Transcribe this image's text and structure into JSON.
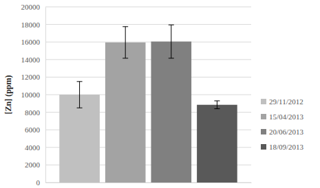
{
  "chart_data": {
    "type": "bar",
    "y_label": "[Zn] (ppm)",
    "categories": [
      null
    ],
    "series": [
      {
        "name": "29/11/2012",
        "color": "#c0c0c0",
        "values": [
          10000
        ],
        "error": [
          1500
        ]
      },
      {
        "name": "15/04/2013",
        "color": "#a3a3a3",
        "values": [
          15950
        ],
        "error": [
          1800
        ]
      },
      {
        "name": "20/06/2013",
        "color": "#808080",
        "values": [
          16050
        ],
        "error": [
          1900
        ]
      },
      {
        "name": "18/09/2013",
        "color": "#595959",
        "values": [
          8850
        ],
        "error": [
          450
        ]
      }
    ],
    "ylim": [
      0,
      20000
    ],
    "yticks": [
      0,
      2000,
      4000,
      6000,
      8000,
      10000,
      12000,
      14000,
      16000,
      18000,
      20000
    ],
    "grid": true,
    "legend": "right"
  }
}
